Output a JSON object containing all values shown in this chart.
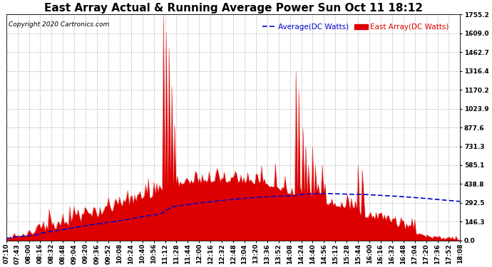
{
  "title": "East Array Actual & Running Average Power Sun Oct 11 18:12",
  "copyright": "Copyright 2020 Cartronics.com",
  "legend_avg": "Average(DC Watts)",
  "legend_east": "East Array(DC Watts)",
  "ylabel_ticks": [
    0.0,
    146.3,
    292.5,
    438.8,
    585.1,
    731.3,
    877.6,
    1023.9,
    1170.2,
    1316.4,
    1462.7,
    1609.0,
    1755.2
  ],
  "ymax": 1755.2,
  "ymin": 0.0,
  "background_color": "#ffffff",
  "fill_color": "#dd0000",
  "avg_color": "#0000cc",
  "grid_color": "#bbbbbb",
  "title_fontsize": 11,
  "copyright_fontsize": 6.5,
  "legend_fontsize": 7.5,
  "tick_fontsize": 6.5,
  "time_labels": [
    "07:10",
    "07:43",
    "08:00",
    "08:16",
    "08:32",
    "08:48",
    "09:04",
    "09:20",
    "09:36",
    "09:52",
    "10:08",
    "10:24",
    "10:40",
    "10:56",
    "11:12",
    "11:28",
    "11:44",
    "12:00",
    "12:16",
    "12:32",
    "12:48",
    "13:04",
    "13:20",
    "13:36",
    "13:52",
    "14:08",
    "14:24",
    "14:40",
    "14:56",
    "15:12",
    "15:28",
    "15:44",
    "16:00",
    "16:16",
    "16:32",
    "16:48",
    "17:04",
    "17:20",
    "17:36",
    "17:52",
    "18:08"
  ]
}
